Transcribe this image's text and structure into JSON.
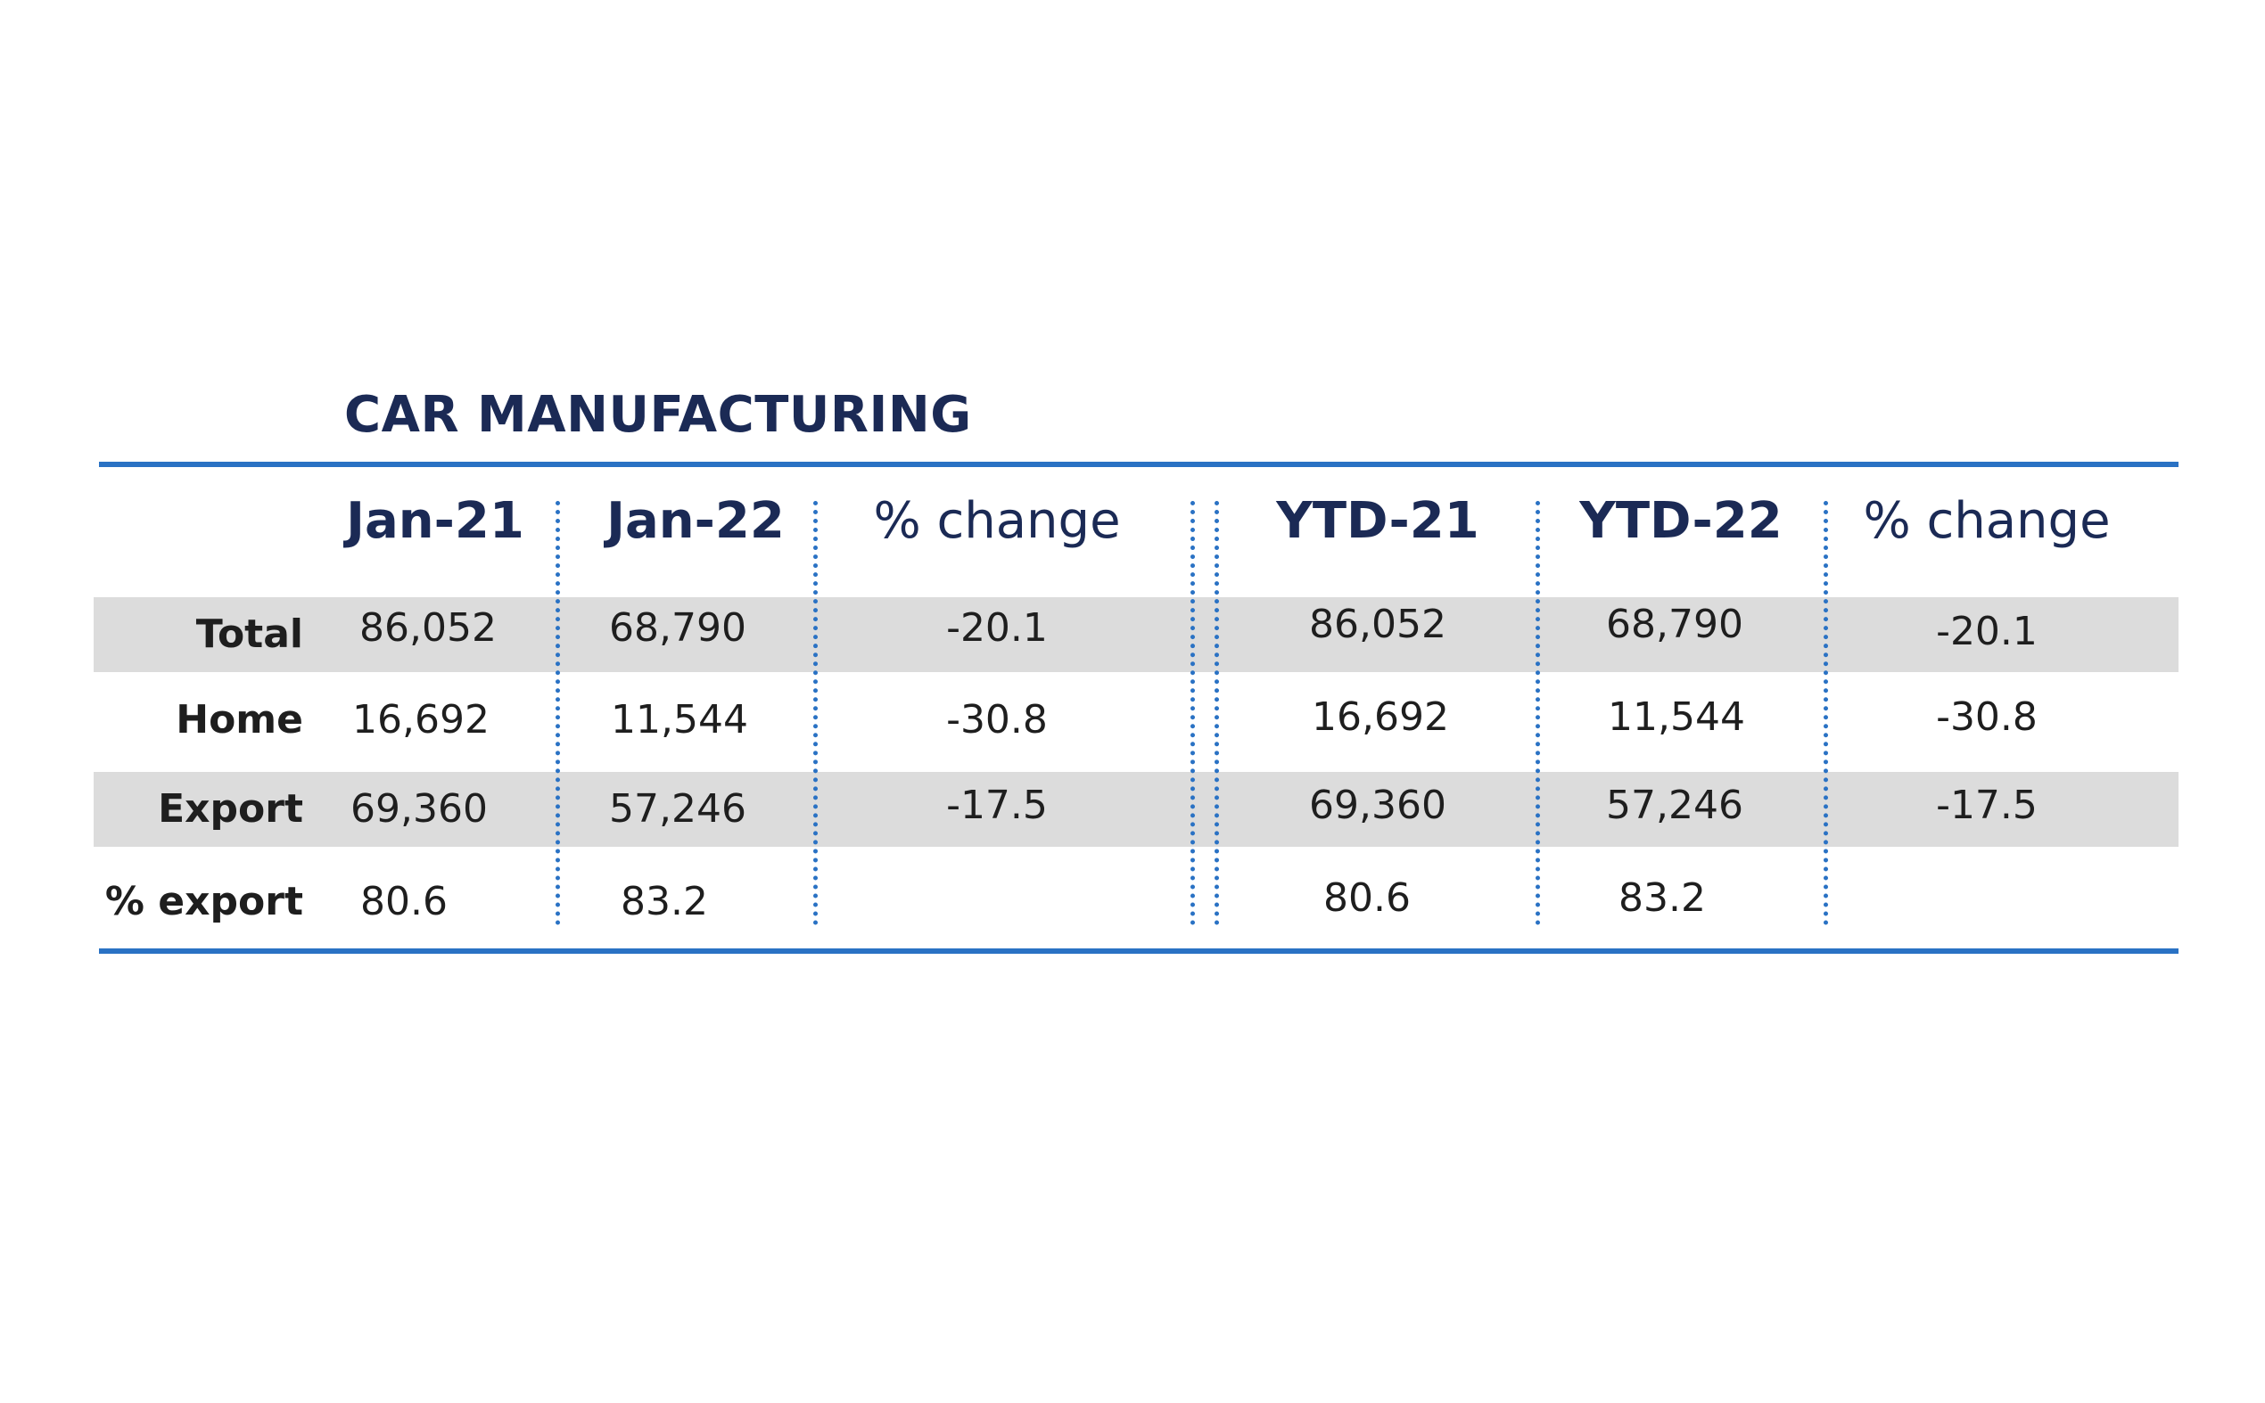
{
  "chart_data": {
    "type": "table",
    "title": "CAR MANUFACTURING",
    "columns": [
      "Jan-21",
      "Jan-22",
      "% change",
      "YTD-21",
      "YTD-22",
      "% change"
    ],
    "rows": [
      {
        "label": "Total",
        "values": [
          "86,052",
          "68,790",
          "-20.1",
          "86,052",
          "68,790",
          "-20.1"
        ]
      },
      {
        "label": "Home",
        "values": [
          "16,692",
          "11,544",
          "-30.8",
          "16,692",
          "11,544",
          "-30.8"
        ]
      },
      {
        "label": "Export",
        "values": [
          "69,360",
          "57,246",
          "-17.5",
          "69,360",
          "57,246",
          "-17.5"
        ]
      },
      {
        "label": "% export",
        "values": [
          "80.6",
          "83.2",
          "",
          "80.6",
          "83.2",
          ""
        ]
      }
    ],
    "accent_color": "#2a72c4",
    "title_color": "#1b2a55",
    "band_color": "#dcdcdc"
  }
}
